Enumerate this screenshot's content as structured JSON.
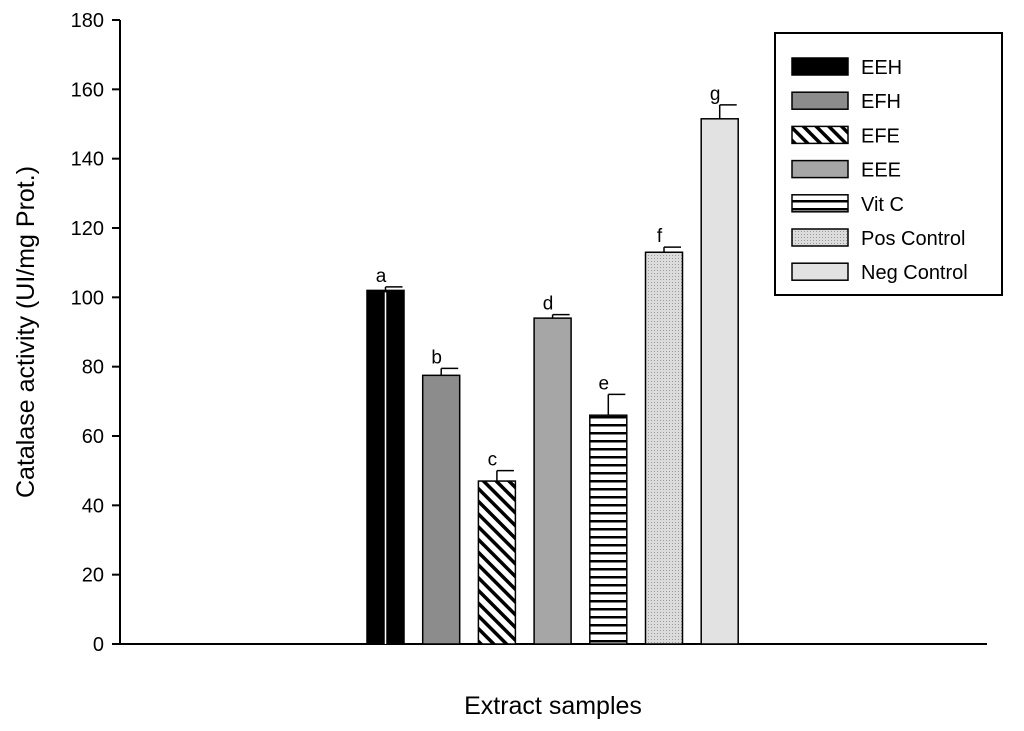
{
  "chart_data": {
    "type": "bar",
    "title": "",
    "xlabel": "Extract samples",
    "ylabel": "Catalase activity (UI/mg Prot.)",
    "ylim": [
      0,
      180
    ],
    "yticks": [
      0,
      20,
      40,
      60,
      80,
      100,
      120,
      140,
      160,
      180
    ],
    "grid": false,
    "legend_position": "top-right",
    "series": [
      {
        "name": "EEH",
        "value": 102,
        "error": 1,
        "label": "a",
        "pattern": "solid-black",
        "color": "#000000"
      },
      {
        "name": "EFH",
        "value": 77.5,
        "error": 2,
        "label": "b",
        "pattern": "solid",
        "color": "#8c8c8c"
      },
      {
        "name": "EFE",
        "value": 47,
        "error": 3,
        "label": "c",
        "pattern": "diagonal-hatch",
        "color": "#ffffff"
      },
      {
        "name": "EEE",
        "value": 94,
        "error": 1,
        "label": "d",
        "pattern": "solid",
        "color": "#a6a6a6"
      },
      {
        "name": "Vit C",
        "value": 66,
        "error": 6,
        "label": "e",
        "pattern": "horizontal-lines",
        "color": "#ffffff"
      },
      {
        "name": "Pos Control",
        "value": 113,
        "error": 1.5,
        "label": "f",
        "pattern": "fine-dots",
        "color": "#d9d9d9"
      },
      {
        "name": "Neg Control",
        "value": 151.5,
        "error": 4,
        "label": "g",
        "pattern": "solid",
        "color": "#e2e2e2"
      }
    ]
  }
}
